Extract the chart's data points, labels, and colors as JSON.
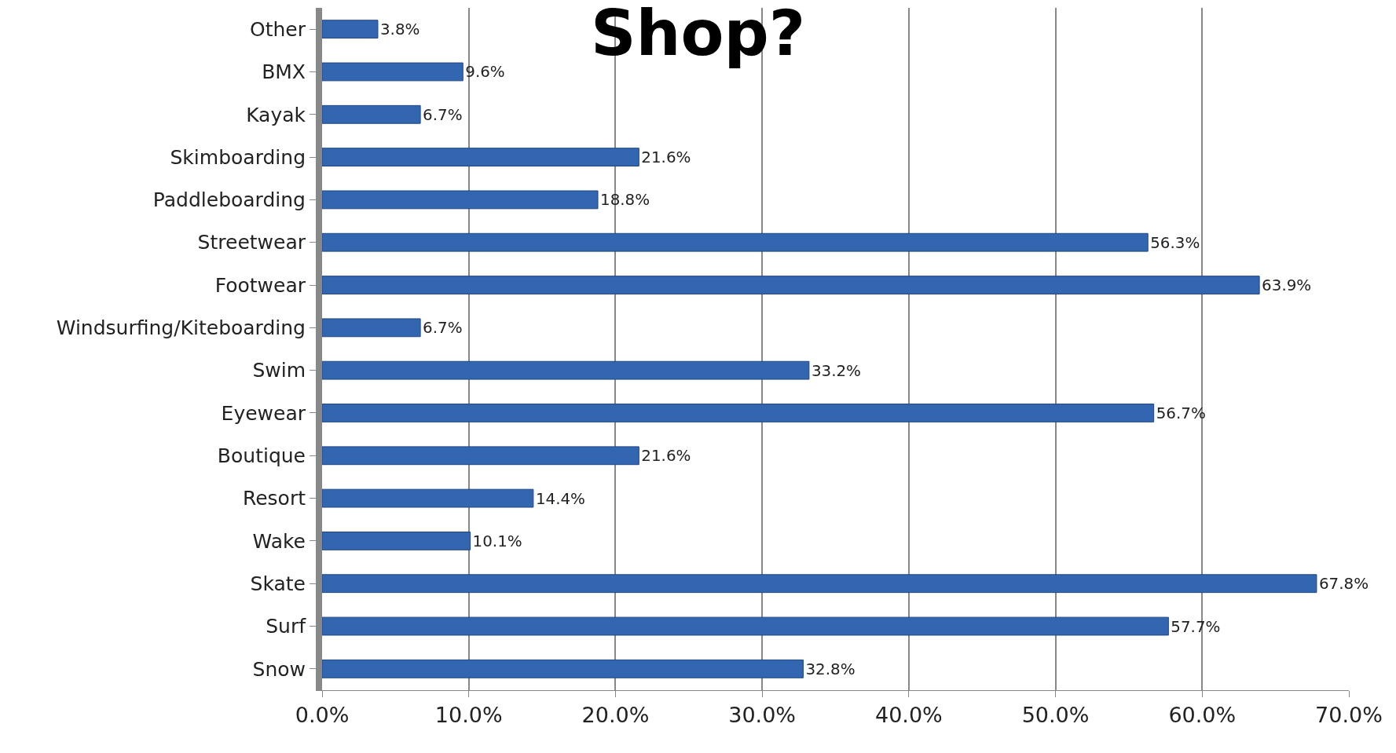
{
  "chart_data": {
    "type": "bar",
    "orientation": "horizontal",
    "title": "Shop?",
    "categories": [
      "Other",
      "BMX",
      "Kayak",
      "Skimboarding",
      "Paddleboarding",
      "Streetwear",
      "Footwear",
      "Windsurfing/Kiteboarding",
      "Swim",
      "Eyewear",
      "Boutique",
      "Resort",
      "Wake",
      "Skate",
      "Surf",
      "Snow"
    ],
    "values": [
      3.8,
      9.6,
      6.7,
      21.6,
      18.8,
      56.3,
      63.9,
      6.7,
      33.2,
      56.7,
      21.6,
      14.4,
      10.1,
      67.8,
      57.7,
      32.8
    ],
    "value_labels": [
      "3.8%",
      "9.6%",
      "6.7%",
      "21.6%",
      "18.8%",
      "56.3%",
      "63.9%",
      "6.7%",
      "33.2%",
      "56.7%",
      "21.6%",
      "14.4%",
      "10.1%",
      "67.8%",
      "57.7%",
      "32.8%"
    ],
    "color": "#3366b0",
    "xlim": [
      0,
      70
    ],
    "xticks": [
      {
        "value": 0,
        "label": "0.0%"
      },
      {
        "value": 10,
        "label": "10.0%"
      },
      {
        "value": 20,
        "label": "20.0%"
      },
      {
        "value": 30,
        "label": "30.0%"
      },
      {
        "value": 40,
        "label": "40.0%"
      },
      {
        "value": 50,
        "label": "50.0%"
      },
      {
        "value": 60,
        "label": "60.0%"
      },
      {
        "value": 70,
        "label": "70.0%"
      }
    ],
    "grid": "x",
    "legend": false
  }
}
